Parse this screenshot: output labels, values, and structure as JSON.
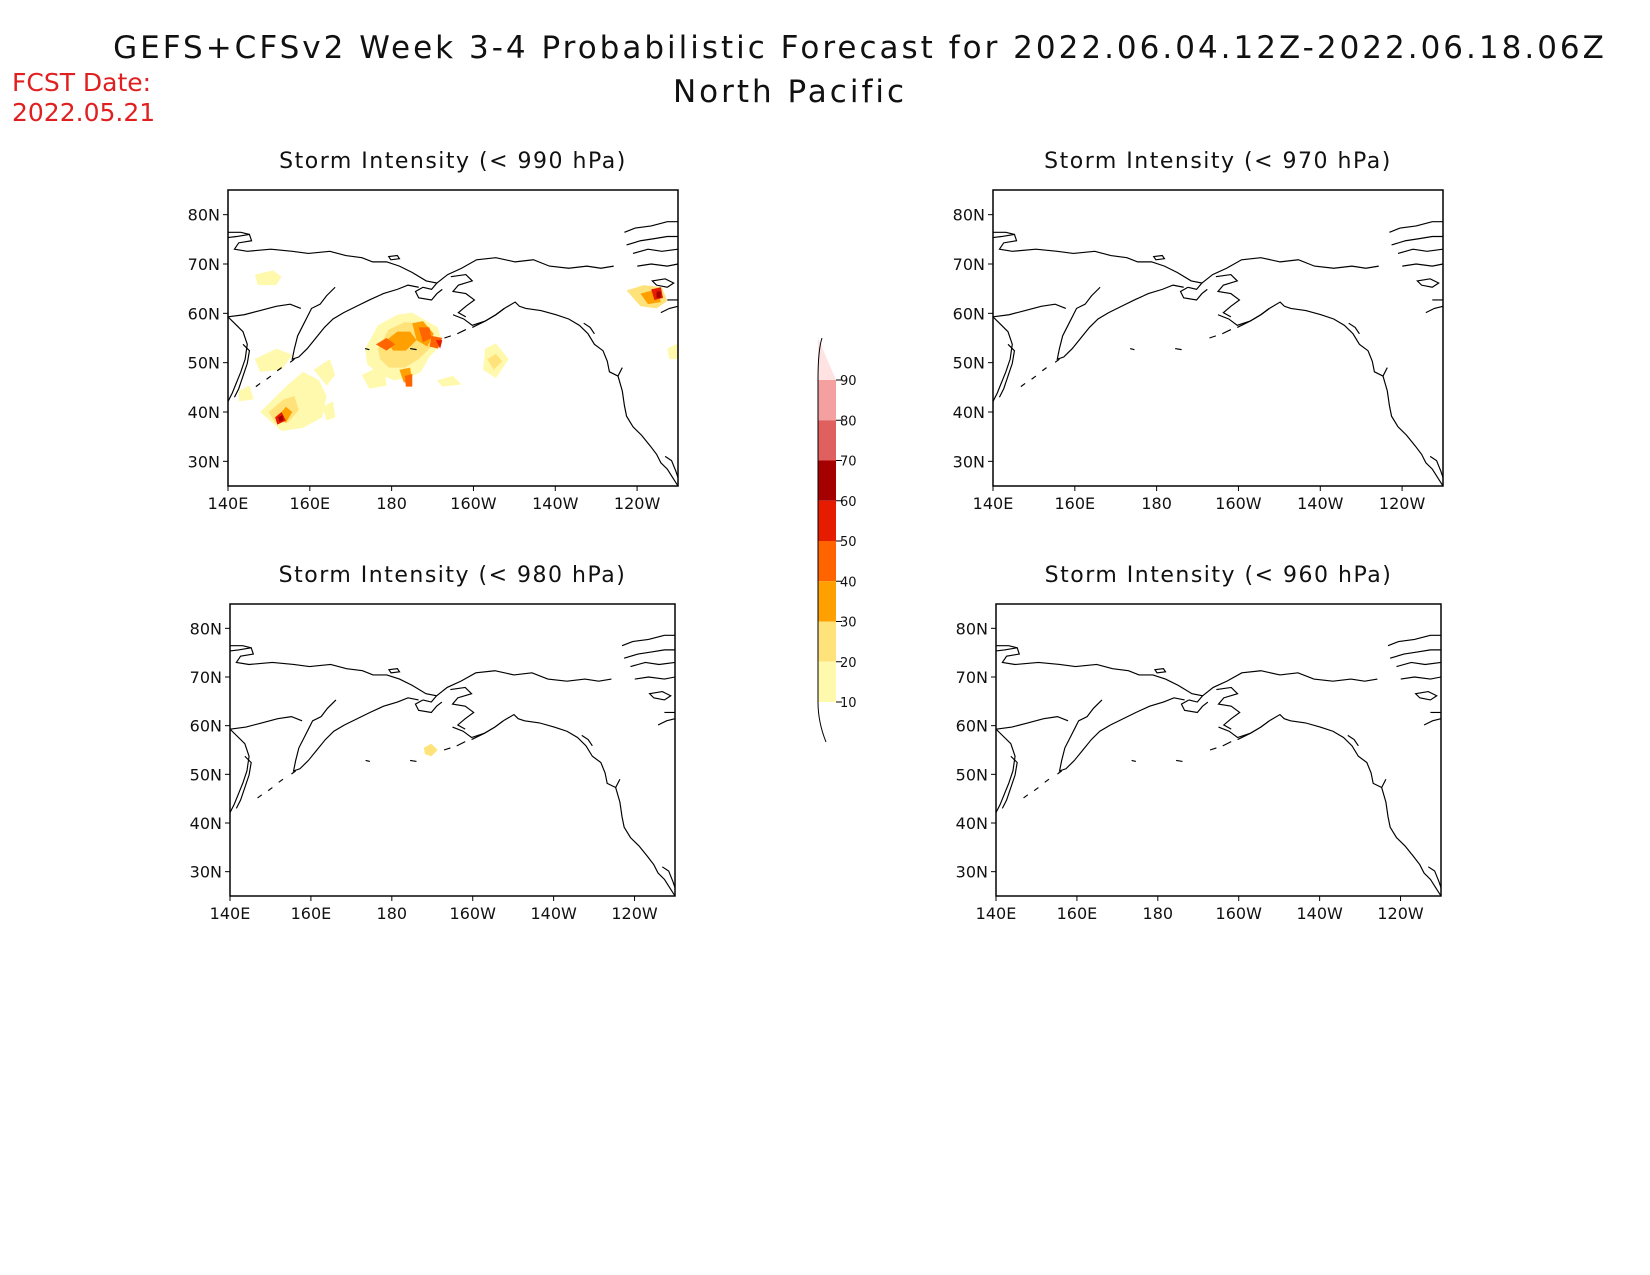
{
  "header": {
    "title": "GEFS+CFSv2 Week 3-4 Probabilistic Forecast for 2022.06.04.12Z-2022.06.18.06Z",
    "subtitle": "North Pacific",
    "fcst_label": "FCST Date:",
    "fcst_value": "2022.05.21"
  },
  "colors": {
    "c10": "#fff9ae",
    "c20": "#ffe27a",
    "c30": "#ffa000",
    "c40": "#ff6400",
    "c50": "#e61c00",
    "c60": "#a50000",
    "c70": "#e06060",
    "c80": "#f4a0a0",
    "c90": "#ffe2e2"
  },
  "colorbar": {
    "ticks": [
      "90",
      "80",
      "70",
      "60",
      "50",
      "40",
      "30",
      "20",
      "10"
    ]
  },
  "axes": {
    "lat_ticks": [
      "80N",
      "70N",
      "60N",
      "50N",
      "40N",
      "30N"
    ],
    "lon_ticks": [
      "140E",
      "160E",
      "180",
      "160W",
      "140W",
      "120W"
    ]
  },
  "panels": [
    {
      "id": "p990",
      "title": "Storm Intensity (< 990 hPa)",
      "has_data": true
    },
    {
      "id": "p970",
      "title": "Storm Intensity (< 970 hPa)",
      "has_data": false
    },
    {
      "id": "p980",
      "title": "Storm Intensity (< 980 hPa)",
      "has_data": true
    },
    {
      "id": "p960",
      "title": "Storm Intensity (< 960 hPa)",
      "has_data": false
    }
  ]
}
